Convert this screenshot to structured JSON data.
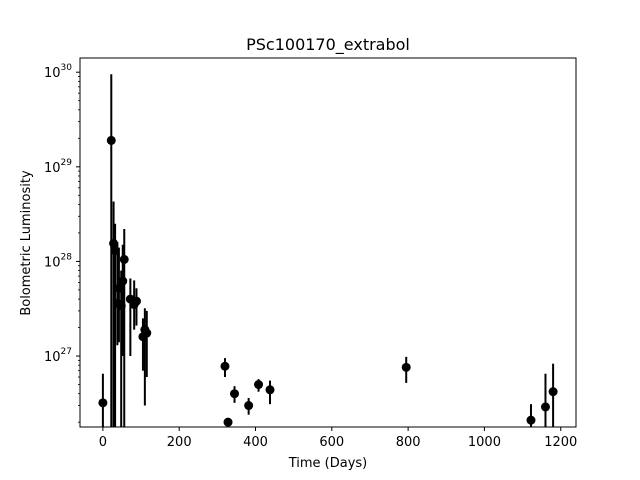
{
  "chart_data": {
    "type": "scatter",
    "title": "PSc100170_extrabol",
    "xlabel": "Time (Days)",
    "ylabel": "Bolometric Luminosity",
    "xlim": [
      -60,
      1240
    ],
    "ylim_log10": [
      26.25,
      30.15
    ],
    "yscale": "log",
    "grid": false,
    "x_ticks": [
      0,
      200,
      400,
      600,
      800,
      1000,
      1200
    ],
    "y_ticks": [
      {
        "base": "10",
        "exp": "27",
        "value": 1e+27
      },
      {
        "base": "10",
        "exp": "28",
        "value": 1e+28
      },
      {
        "base": "10",
        "exp": "29",
        "value": 1e+29
      },
      {
        "base": "10",
        "exp": "30",
        "value": 1e+30
      }
    ],
    "marker_color": "#000000",
    "points": [
      {
        "x": 0,
        "y": 3.2e+26,
        "ylo": 1e+26,
        "yhi": 6.5e+26
      },
      {
        "x": 22,
        "y": 1.9e+29,
        "ylo": 1e+26,
        "yhi": 9.5e+29
      },
      {
        "x": 28,
        "y": 1.55e+28,
        "ylo": 1e+26,
        "yhi": 4.3e+28
      },
      {
        "x": 32,
        "y": 1.3e+28,
        "ylo": 1e+26,
        "yhi": 2.5e+28
      },
      {
        "x": 38,
        "y": 3.6e+27,
        "ylo": 1.3e+27,
        "yhi": 1.6e+28
      },
      {
        "x": 42,
        "y": 5.2e+27,
        "ylo": 1.4e+27,
        "yhi": 1.4e+28
      },
      {
        "x": 48,
        "y": 3.4e+27,
        "ylo": 1e+26,
        "yhi": 8e+27
      },
      {
        "x": 52,
        "y": 6.2e+27,
        "ylo": 1e+27,
        "yhi": 1.5e+28
      },
      {
        "x": 56,
        "y": 1.05e+28,
        "ylo": 1e+26,
        "yhi": 2.2e+28
      },
      {
        "x": 72,
        "y": 4e+27,
        "ylo": 1e+27,
        "yhi": 6.6e+27
      },
      {
        "x": 82,
        "y": 3.5e+27,
        "ylo": 1.9e+27,
        "yhi": 6.3e+27
      },
      {
        "x": 88,
        "y": 3.8e+27,
        "ylo": 2.1e+27,
        "yhi": 5.2e+27
      },
      {
        "x": 105,
        "y": 1.6e+27,
        "ylo": 7e+26,
        "yhi": 2.5e+27
      },
      {
        "x": 110,
        "y": 1.9e+27,
        "ylo": 3e+26,
        "yhi": 3.2e+27
      },
      {
        "x": 115,
        "y": 1.75e+27,
        "ylo": 6e+26,
        "yhi": 3e+27
      },
      {
        "x": 320,
        "y": 7.8e+26,
        "ylo": 6e+26,
        "yhi": 9.5e+26
      },
      {
        "x": 328,
        "y": 2e+26,
        "ylo": 1.95e+26,
        "yhi": 2.05e+26
      },
      {
        "x": 345,
        "y": 4e+26,
        "ylo": 3.2e+26,
        "yhi": 4.8e+26
      },
      {
        "x": 382,
        "y": 3e+26,
        "ylo": 2.4e+26,
        "yhi": 3.6e+26
      },
      {
        "x": 408,
        "y": 5e+26,
        "ylo": 4.2e+26,
        "yhi": 5.7e+26
      },
      {
        "x": 438,
        "y": 4.4e+26,
        "ylo": 3.1e+26,
        "yhi": 5.5e+26
      },
      {
        "x": 795,
        "y": 7.6e+26,
        "ylo": 5.2e+26,
        "yhi": 9.8e+26
      },
      {
        "x": 1122,
        "y": 2.1e+26,
        "ylo": 1e+26,
        "yhi": 3.1e+26
      },
      {
        "x": 1160,
        "y": 2.9e+26,
        "ylo": 1e+26,
        "yhi": 6.5e+26
      },
      {
        "x": 1180,
        "y": 4.2e+26,
        "ylo": 1e+26,
        "yhi": 8.3e+26
      }
    ]
  }
}
